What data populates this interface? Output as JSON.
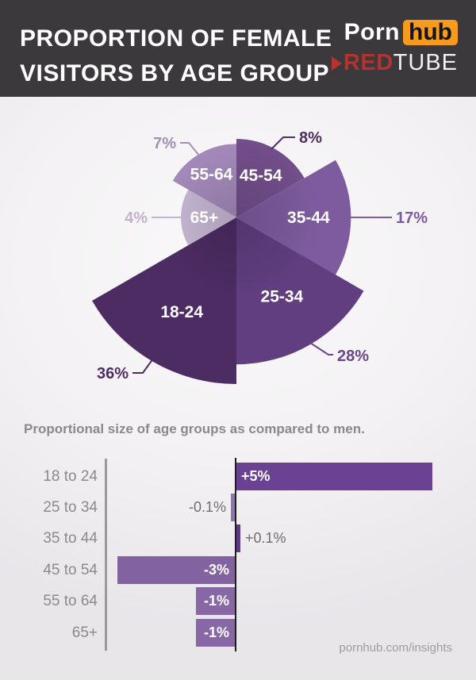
{
  "header": {
    "title_line1": "PROPORTION OF FEMALE",
    "title_line2": "VISITORS BY AGE GROUP",
    "pornhub_logo": {
      "part1": "Porn",
      "part2": "hub",
      "accent_color": "#f79b1e"
    },
    "redtube_logo": {
      "part1": "RED",
      "part2": "TUBE",
      "accent_color": "#b5322f"
    }
  },
  "icons": {
    "redtube_play": "play-triangle"
  },
  "footer": "pornhub.com/insights",
  "chart_data": [
    {
      "type": "pie",
      "variant": "polar-area-rose",
      "title": "Proportion of female visitors by age group",
      "unit": "%",
      "note": "sector radius scales with square root of value; sectors clockwise from 12 o'clock",
      "sectors": [
        {
          "label": "45-54",
          "value": 8,
          "display": "8%",
          "color": "#734f8c",
          "label_color": "#4e2f63"
        },
        {
          "label": "35-44",
          "value": 17,
          "display": "17%",
          "color": "#7e5b9e",
          "label_color": "#7e5b9e"
        },
        {
          "label": "25-34",
          "value": 28,
          "display": "28%",
          "color": "#613e80",
          "label_color": "#6a4788"
        },
        {
          "label": "18-24",
          "value": 36,
          "display": "36%",
          "color": "#4d2c64",
          "label_color": "#4d2c64"
        },
        {
          "label": "65+",
          "value": 4,
          "display": "4%",
          "color": "#c9b9d6",
          "label_color": "#c2b2d0"
        },
        {
          "label": "55-64",
          "value": 7,
          "display": "7%",
          "color": "#a68cbd",
          "label_color": "#a18fb4"
        }
      ]
    },
    {
      "type": "bar",
      "orientation": "horizontal",
      "title": "Proportional size of age groups as compared to men.",
      "categories": [
        "18 to 24",
        "25 to 34",
        "35 to 44",
        "45 to 54",
        "55 to 64",
        "65+"
      ],
      "values": [
        5,
        -0.1,
        0.1,
        -3,
        -1,
        -1
      ],
      "labels": [
        "+5%",
        "-0.1%",
        "+0.1%",
        "-3%",
        "-1%",
        "-1%"
      ],
      "bar_colors": [
        "#6a4193",
        "#8f76b0",
        "#5e3a85",
        "#8362a2",
        "#8767a6",
        "#8767a6"
      ],
      "xlim": [
        -3.5,
        5.2
      ],
      "baseline": 0,
      "grid": false,
      "legend": false,
      "inside_label_color": "#ffffff",
      "outside_label_color": "#6e6e6e"
    }
  ]
}
